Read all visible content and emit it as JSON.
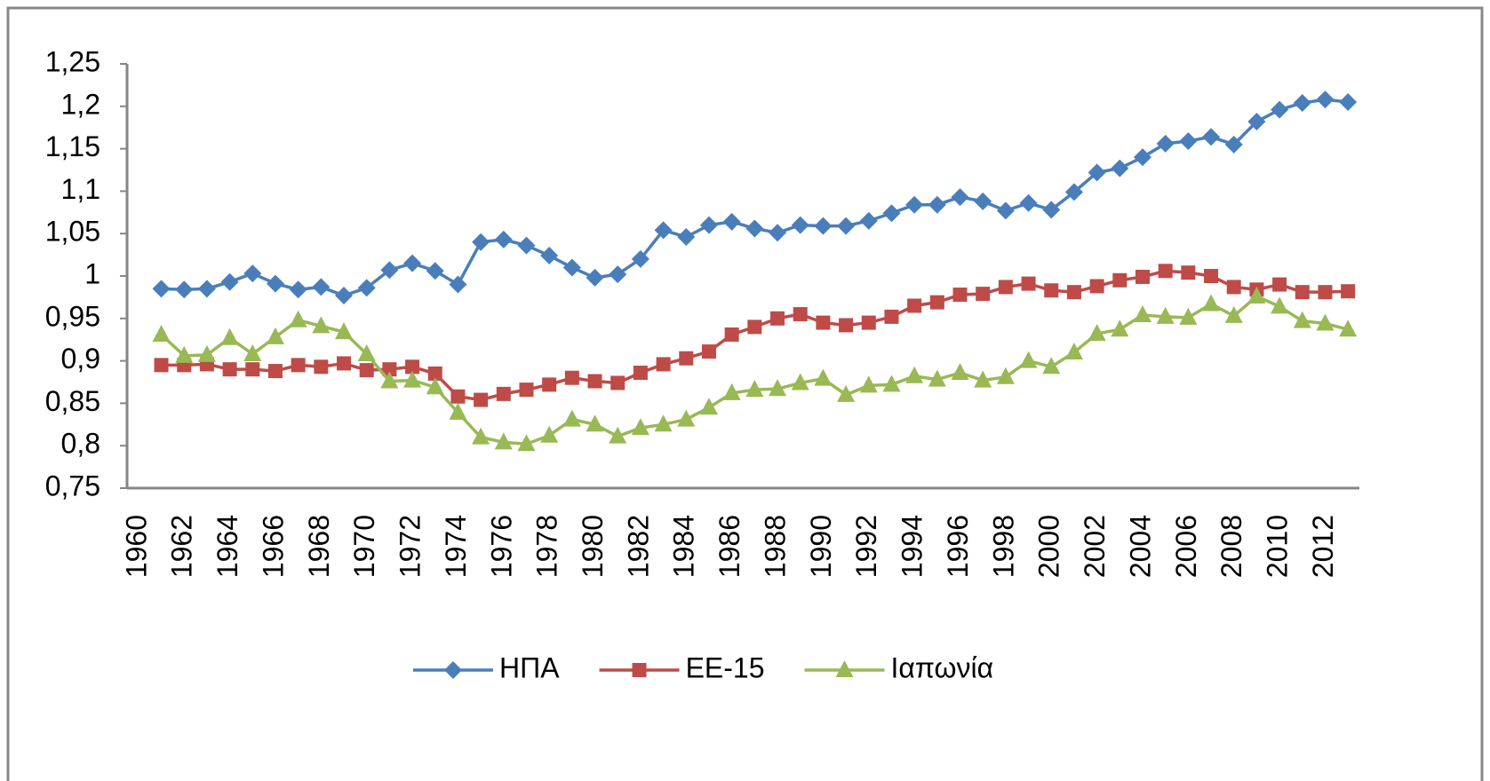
{
  "chart_data": {
    "type": "line",
    "categories": [
      1960,
      null,
      1962,
      null,
      1964,
      null,
      1966,
      null,
      1968,
      null,
      1970,
      null,
      1972,
      null,
      1974,
      null,
      1976,
      null,
      1978,
      null,
      1980,
      null,
      1982,
      null,
      1984,
      null,
      1986,
      null,
      1988,
      null,
      1990,
      null,
      1992,
      null,
      1994,
      null,
      1996,
      null,
      1998,
      null,
      2000,
      null,
      2002,
      null,
      2004,
      null,
      2006,
      null,
      2008,
      null,
      2010,
      null,
      2012,
      null
    ],
    "series": [
      {
        "name": "ΗΠΑ",
        "color": "#4a7ebb",
        "marker": "diamond",
        "values": [
          null,
          0.985,
          0.984,
          0.985,
          0.993,
          1.003,
          0.991,
          0.984,
          0.987,
          0.977,
          0.986,
          1.007,
          1.015,
          1.006,
          0.99,
          1.04,
          1.043,
          1.036,
          1.024,
          1.01,
          0.998,
          1.002,
          1.02,
          1.054,
          1.046,
          1.06,
          1.064,
          1.056,
          1.051,
          1.06,
          1.059,
          1.059,
          1.065,
          1.074,
          1.084,
          1.084,
          1.093,
          1.088,
          1.077,
          1.086,
          1.078,
          1.099,
          1.122,
          1.127,
          1.14,
          1.156,
          1.159,
          1.164,
          1.155,
          1.182,
          1.196,
          1.204,
          1.208,
          1.205
        ]
      },
      {
        "name": "ΕΕ-15",
        "color": "#be4b48",
        "marker": "square",
        "values": [
          null,
          0.895,
          0.895,
          0.896,
          0.89,
          0.89,
          0.888,
          0.895,
          0.893,
          0.897,
          0.889,
          0.89,
          0.893,
          0.885,
          0.858,
          0.854,
          0.861,
          0.866,
          0.872,
          0.88,
          0.876,
          0.874,
          0.886,
          0.896,
          0.903,
          0.911,
          0.931,
          0.94,
          0.95,
          0.955,
          0.945,
          0.942,
          0.945,
          0.952,
          0.965,
          0.969,
          0.978,
          0.979,
          0.987,
          0.991,
          0.983,
          0.981,
          0.988,
          0.995,
          0.999,
          1.006,
          1.004,
          1.0,
          0.987,
          0.984,
          0.99,
          0.981,
          0.981,
          0.982
        ]
      },
      {
        "name": "Ιαπωνία",
        "color": "#98b954",
        "marker": "triangle",
        "values": [
          null,
          0.931,
          0.906,
          0.907,
          0.927,
          0.908,
          0.928,
          0.948,
          0.941,
          0.934,
          0.908,
          0.876,
          0.877,
          0.869,
          0.839,
          0.81,
          0.804,
          0.802,
          0.812,
          0.831,
          0.825,
          0.811,
          0.821,
          0.825,
          0.831,
          0.845,
          0.862,
          0.866,
          0.867,
          0.874,
          0.879,
          0.86,
          0.871,
          0.872,
          0.882,
          0.878,
          0.886,
          0.877,
          0.881,
          0.9,
          0.893,
          0.91,
          0.932,
          0.937,
          0.954,
          0.952,
          0.951,
          0.967,
          0.953,
          0.976,
          0.964,
          0.947,
          0.944,
          0.937
        ]
      }
    ],
    "ylim": [
      0.75,
      1.25
    ],
    "yticks": [
      {
        "value": 0.75,
        "label": "0,75"
      },
      {
        "value": 0.8,
        "label": "0,8"
      },
      {
        "value": 0.85,
        "label": "0,85"
      },
      {
        "value": 0.9,
        "label": "0,9"
      },
      {
        "value": 0.95,
        "label": "0,95"
      },
      {
        "value": 1,
        "label": "1"
      },
      {
        "value": 1.05,
        "label": "1,05"
      },
      {
        "value": 1.1,
        "label": "1,1"
      },
      {
        "value": 1.15,
        "label": "1,15"
      },
      {
        "value": 1.2,
        "label": "1,2"
      },
      {
        "value": 1.25,
        "label": "1,25"
      }
    ],
    "grid": false,
    "legend": "bottom"
  }
}
